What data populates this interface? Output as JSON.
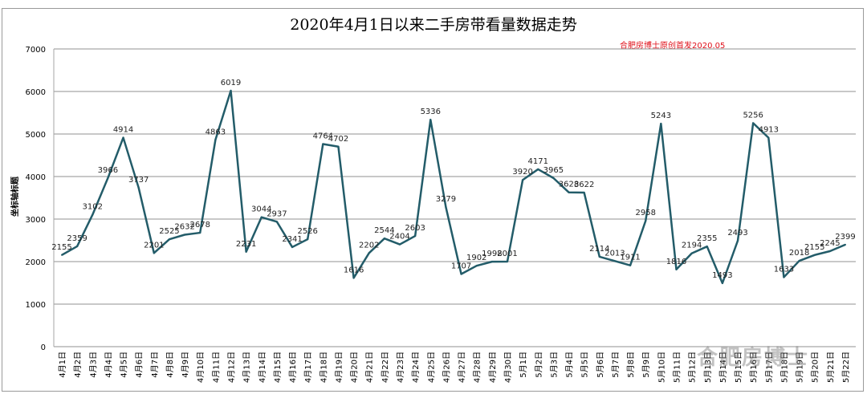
{
  "chart_data": {
    "type": "line",
    "title": "2020年4月1日以来二手房带看量数据走势",
    "annotation": "合肥房博士原创首发2020.05",
    "watermark": "合肥房博士",
    "xlabel": "",
    "ylabel": "坐标轴标题",
    "ylim": [
      0,
      7000
    ],
    "yticks": [
      0,
      1000,
      2000,
      3000,
      4000,
      5000,
      6000,
      7000
    ],
    "grid": true,
    "legend": "none",
    "line_color": "#235c69",
    "categories": [
      "4月1日",
      "4月2日",
      "4月3日",
      "4月4日",
      "4月5日",
      "4月6日",
      "4月7日",
      "4月8日",
      "4月9日",
      "4月10日",
      "4月11日",
      "4月12日",
      "4月13日",
      "4月14日",
      "4月15日",
      "4月16日",
      "4月17日",
      "4月18日",
      "4月19日",
      "4月20日",
      "4月21日",
      "4月22日",
      "4月23日",
      "4月24日",
      "4月25日",
      "4月26日",
      "4月27日",
      "4月28日",
      "4月29日",
      "4月30日",
      "5月1日",
      "5月2日",
      "5月3日",
      "5月4日",
      "5月5日",
      "5月6日",
      "5月7日",
      "5月8日",
      "5月9日",
      "5月10日",
      "5月11日",
      "5月12日",
      "5月13日",
      "5月14日",
      "5月15日",
      "5月16日",
      "5月17日",
      "5月18日",
      "5月19日",
      "5月20日",
      "5月21日",
      "5月22日"
    ],
    "values": [
      2155,
      2359,
      3102,
      3966,
      4914,
      3737,
      2201,
      2525,
      2632,
      2678,
      4863,
      6019,
      2231,
      3044,
      2937,
      2341,
      2526,
      4764,
      4702,
      1616,
      2202,
      2544,
      2404,
      2603,
      5336,
      3279,
      1707,
      1902,
      1998,
      2001,
      3920,
      4171,
      3965,
      3628,
      3622,
      2114,
      2013,
      1911,
      2958,
      5243,
      1816,
      2194,
      2355,
      1493,
      2493,
      5256,
      4913,
      1633,
      2018,
      2155,
      2245,
      2399
    ]
  }
}
